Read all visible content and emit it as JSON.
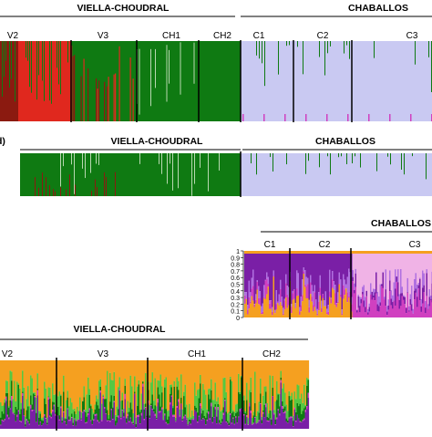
{
  "colors": {
    "green": "#0f7a12",
    "red": "#e0281e",
    "darkred": "#8b1a10",
    "lavender": "#c9c9f2",
    "orange": "#f5a020",
    "lightgreen": "#56c842",
    "purple": "#7a1fa6",
    "violet": "#b070e0",
    "pink": "#f0b3e6",
    "magenta": "#d040c0"
  },
  "chart_data": [
    {
      "type": "bar",
      "title": "",
      "group_labels": [
        "VIELLA-CHOUDRAL",
        "CHABALLOS"
      ],
      "population_labels": [
        "V2",
        "V3",
        "CH1",
        "CH2",
        "C1",
        "C2",
        "C3"
      ],
      "stacked": true,
      "clusters": 2
    },
    {
      "type": "bar",
      "panel_label": "d)",
      "group_labels": [
        "VIELLA-CHOUDRAL",
        "CHABALLOS"
      ],
      "stacked": true,
      "clusters": 2
    },
    {
      "type": "bar",
      "group_labels": [
        "CHABALLOS"
      ],
      "population_labels": [
        "C1",
        "C2",
        "C3"
      ],
      "y_ticks": [
        "1",
        "0.9",
        "0.8",
        "0.7",
        "0.6",
        "0.5",
        "0.4",
        "0.3",
        "0.2",
        "0.1",
        "0"
      ],
      "ylim": [
        0,
        1
      ],
      "stacked": true
    },
    {
      "type": "bar",
      "group_labels": [
        "VIELLA-CHOUDRAL"
      ],
      "population_labels": [
        "V2",
        "V3",
        "CH1",
        "CH2"
      ],
      "stacked": true
    }
  ]
}
